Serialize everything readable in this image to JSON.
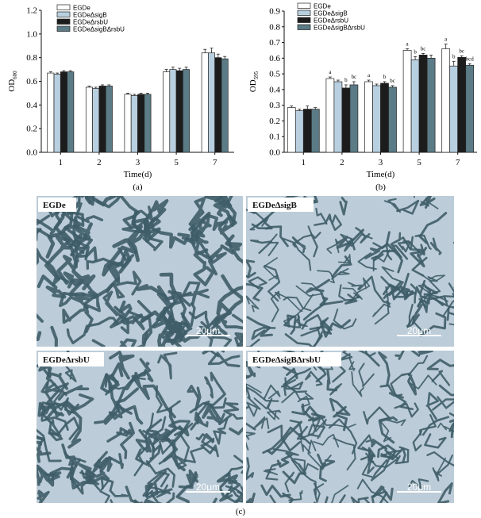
{
  "chart_data": [
    {
      "type": "bar",
      "panel_label": "(a)",
      "xlabel": "Time(d)",
      "ylabel_main": "OD",
      "ylabel_sub": "600",
      "ylim": [
        0,
        1.2
      ],
      "yticks": [
        "0.0",
        "0.2",
        "0.4",
        "0.6",
        "0.8",
        "1.0",
        "1.2"
      ],
      "categories": [
        "1",
        "2",
        "3",
        "5",
        "7"
      ],
      "series": [
        {
          "name": "EGDe",
          "values": [
            0.67,
            0.55,
            0.49,
            0.68,
            0.84
          ],
          "errors": [
            0.01,
            0.01,
            0.01,
            0.02,
            0.03
          ]
        },
        {
          "name": "EGDeΔsigB",
          "values": [
            0.66,
            0.54,
            0.48,
            0.7,
            0.84
          ],
          "errors": [
            0.01,
            0.01,
            0.01,
            0.02,
            0.04
          ]
        },
        {
          "name": "EGDeΔrsbU",
          "values": [
            0.68,
            0.56,
            0.49,
            0.69,
            0.8
          ],
          "errors": [
            0.01,
            0.01,
            0.01,
            0.02,
            0.03
          ]
        },
        {
          "name": "EGDeΔsigBΔrsbU",
          "values": [
            0.68,
            0.56,
            0.49,
            0.7,
            0.79
          ],
          "errors": [
            0.01,
            0.01,
            0.01,
            0.02,
            0.02
          ]
        }
      ],
      "colors": [
        "#ffffff",
        "#b8cfe0",
        "#1c1c1c",
        "#5b7b86"
      ],
      "legend_position": "top-left",
      "grid": false
    },
    {
      "type": "bar",
      "panel_label": "(b)",
      "xlabel": "Time(d)",
      "ylabel_main": "OD",
      "ylabel_sub": "595",
      "ylim": [
        0,
        0.9
      ],
      "yticks": [
        "0.0",
        "0.1",
        "0.2",
        "0.3",
        "0.4",
        "0.5",
        "0.6",
        "0.7",
        "0.8",
        "0.9"
      ],
      "categories": [
        "1",
        "2",
        "3",
        "5",
        "7"
      ],
      "series": [
        {
          "name": "EGDe",
          "values": [
            0.285,
            0.47,
            0.45,
            0.65,
            0.66
          ],
          "errors": [
            0.01,
            0.01,
            0.01,
            0.01,
            0.03
          ],
          "sig": [
            "",
            "a",
            "a",
            "a",
            "a"
          ]
        },
        {
          "name": "EGDeΔsigB",
          "values": [
            0.265,
            0.45,
            0.425,
            0.59,
            0.55
          ],
          "errors": [
            0.01,
            0.01,
            0.01,
            0.02,
            0.03
          ],
          "sig": [
            "",
            "",
            "",
            "b",
            "b"
          ]
        },
        {
          "name": "EGDeΔrsbU",
          "values": [
            0.275,
            0.41,
            0.44,
            0.62,
            0.605
          ],
          "errors": [
            0.02,
            0.02,
            0.01,
            0.01,
            0.01
          ],
          "sig": [
            "",
            "b",
            "b",
            "bc",
            "bc"
          ]
        },
        {
          "name": "EGDeΔsigBΔrsbU",
          "values": [
            0.275,
            0.43,
            0.415,
            0.6,
            0.555
          ],
          "errors": [
            0.01,
            0.02,
            0.01,
            0.02,
            0.01
          ],
          "sig": [
            "",
            "bc",
            "bc",
            "",
            "bcd"
          ]
        }
      ],
      "colors": [
        "#ffffff",
        "#b8cfe0",
        "#1c1c1c",
        "#5b7b86"
      ],
      "legend_position": "top-left",
      "grid": false
    }
  ],
  "micrographs": {
    "panel_label": "(c)",
    "images": [
      {
        "label": "EGDe",
        "scale": "20μm",
        "pattern": "dense-clusters"
      },
      {
        "label": "EGDeΔsigB",
        "scale": "20μm",
        "pattern": "sparse-network"
      },
      {
        "label": "EGDeΔrsbU",
        "scale": "20μm",
        "pattern": "medium-network"
      },
      {
        "label": "EGDeΔsigBΔrsbU",
        "scale": "20μm",
        "pattern": "sparse-dots"
      }
    ],
    "colors": {
      "background": "#bcccd8",
      "cells": "#3e5d68",
      "frame": "#ffffff"
    }
  }
}
